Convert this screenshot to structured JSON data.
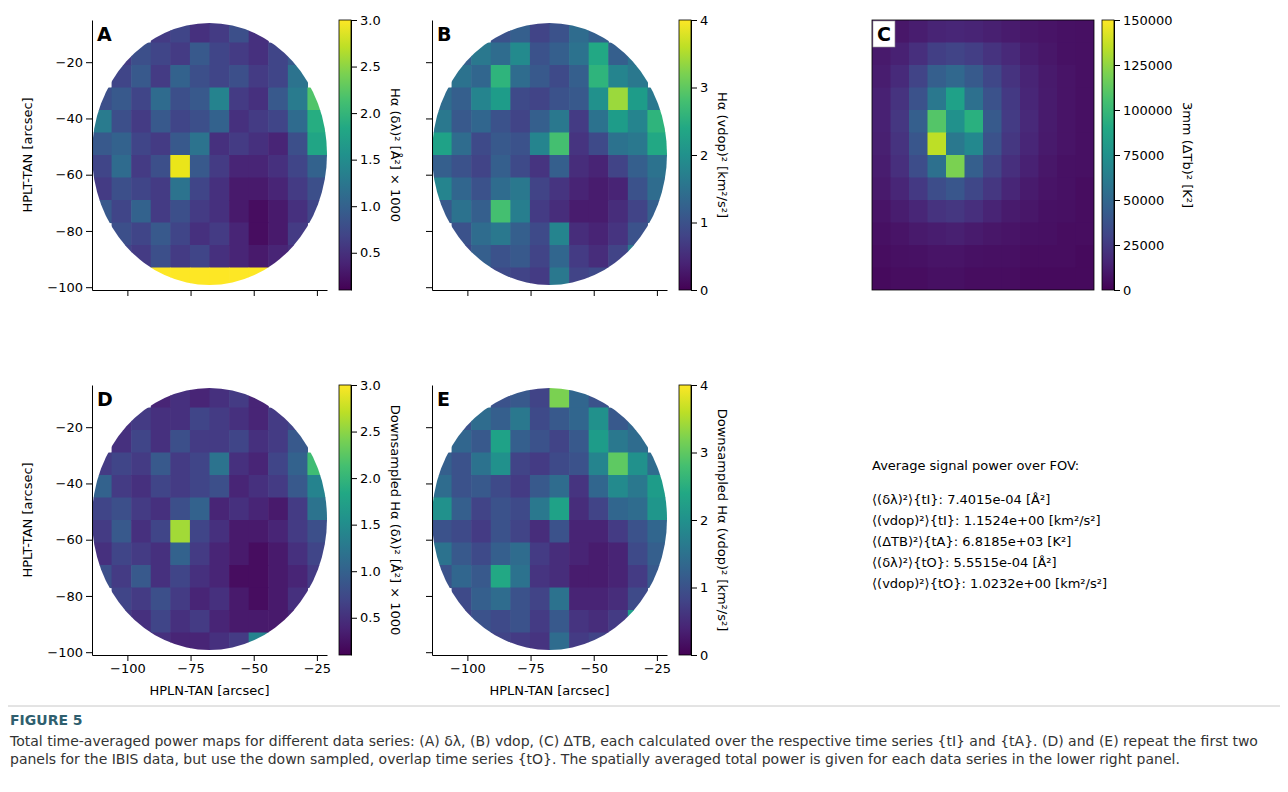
{
  "chart_data": [
    {
      "type": "heatmap",
      "panel": "A",
      "ylabel": "HPLT-TAN [arcsec]",
      "xlim": [
        -114,
        -21
      ],
      "ylim": [
        -101,
        -5
      ],
      "xticks": [
        {
          "value": -100,
          "label": "−100"
        },
        {
          "value": -75,
          "label": "−75"
        },
        {
          "value": -50,
          "label": "−50"
        },
        {
          "value": -25,
          "label": "−25"
        }
      ],
      "yticks": [
        {
          "value": -20,
          "label": "−20"
        },
        {
          "value": -40,
          "label": "−40"
        },
        {
          "value": -60,
          "label": "−60"
        },
        {
          "value": -80,
          "label": "−80"
        },
        {
          "value": -100,
          "label": "−100"
        }
      ],
      "tick_labels": "y",
      "cells": [
        [
          null,
          null,
          null,
          0.6,
          0.7,
          0.5,
          0.6,
          0.8,
          0.5,
          null,
          null,
          null
        ],
        [
          null,
          0.6,
          0.8,
          0.7,
          0.6,
          0.9,
          0.7,
          0.6,
          0.5,
          0.7,
          0.9,
          null
        ],
        [
          null,
          0.7,
          0.9,
          0.6,
          1.0,
          0.8,
          0.7,
          0.8,
          0.6,
          0.7,
          1.2,
          null
        ],
        [
          0.8,
          0.9,
          0.7,
          1.1,
          0.8,
          0.9,
          1.4,
          0.6,
          0.5,
          0.9,
          1.3,
          2.2
        ],
        [
          1.3,
          0.8,
          0.6,
          0.9,
          0.7,
          0.8,
          1.0,
          0.5,
          0.6,
          0.7,
          1.1,
          1.9
        ],
        [
          0.9,
          1.0,
          0.7,
          0.6,
          0.9,
          1.2,
          0.5,
          0.6,
          0.5,
          0.4,
          0.8,
          1.8
        ],
        [
          0.7,
          1.1,
          0.6,
          0.8,
          2.9,
          0.9,
          0.6,
          0.4,
          0.4,
          0.5,
          0.7,
          1.0
        ],
        [
          0.6,
          0.8,
          0.7,
          0.6,
          1.2,
          0.7,
          0.5,
          0.3,
          0.3,
          0.4,
          0.6,
          0.8
        ],
        [
          0.9,
          0.7,
          1.0,
          0.6,
          0.8,
          0.6,
          0.5,
          0.3,
          0.2,
          0.3,
          0.5,
          0.7
        ],
        [
          null,
          0.8,
          0.7,
          0.9,
          0.7,
          0.5,
          0.6,
          0.4,
          0.2,
          0.3,
          0.6,
          null
        ],
        [
          null,
          0.7,
          0.6,
          0.8,
          0.6,
          0.7,
          0.5,
          0.4,
          0.3,
          0.4,
          0.5,
          null
        ],
        [
          null,
          null,
          null,
          3.0,
          3.0,
          3.0,
          3.0,
          3.0,
          3.0,
          null,
          null,
          null
        ]
      ],
      "colorbar": {
        "label": "Hα (δλ)² [Å²] × 1000",
        "lim": [
          0.1,
          3.0
        ],
        "ticks": [
          0.5,
          {
            "value": 1,
            "label": "1.0"
          },
          1.5,
          {
            "value": 2,
            "label": "2.0"
          },
          2.5,
          {
            "value": 3,
            "label": "3.0"
          }
        ]
      }
    },
    {
      "type": "heatmap",
      "panel": "B",
      "xlim": [
        -114,
        -21
      ],
      "ylim": [
        -101,
        -5
      ],
      "xticks": [
        -100,
        -75,
        -50,
        -25
      ],
      "yticks": [
        -20,
        -40,
        -60,
        -80,
        -100
      ],
      "tick_labels": false,
      "cells": [
        [
          null,
          null,
          null,
          1.0,
          1.2,
          0.8,
          1.0,
          1.4,
          1.2,
          null,
          null,
          null
        ],
        [
          null,
          1.2,
          1.6,
          1.4,
          1.9,
          1.0,
          1.2,
          1.5,
          2.4,
          1.2,
          1.5,
          null
        ],
        [
          null,
          1.5,
          1.3,
          2.6,
          1.4,
          1.1,
          0.9,
          1.2,
          2.6,
          1.8,
          1.6,
          null
        ],
        [
          1.4,
          1.2,
          1.8,
          2.2,
          0.9,
          0.8,
          1.0,
          1.1,
          2.0,
          3.4,
          2.2,
          1.6
        ],
        [
          1.6,
          1.1,
          1.3,
          1.0,
          0.8,
          1.2,
          1.6,
          0.7,
          1.5,
          2.2,
          1.8,
          2.6
        ],
        [
          2.3,
          1.4,
          0.9,
          1.1,
          1.0,
          1.8,
          2.8,
          0.6,
          0.9,
          1.5,
          1.6,
          2.4
        ],
        [
          1.2,
          1.0,
          0.8,
          1.2,
          0.9,
          0.6,
          1.2,
          0.5,
          0.4,
          0.8,
          1.2,
          1.5
        ],
        [
          1.8,
          1.3,
          1.0,
          1.4,
          1.6,
          0.8,
          0.6,
          0.4,
          0.3,
          0.4,
          1.0,
          1.4
        ],
        [
          1.1,
          1.5,
          1.2,
          2.8,
          1.7,
          0.7,
          0.5,
          0.3,
          0.3,
          0.5,
          0.8,
          1.2
        ],
        [
          null,
          1.0,
          1.4,
          1.6,
          1.2,
          0.9,
          1.8,
          0.5,
          0.4,
          0.6,
          1.0,
          null
        ],
        [
          null,
          0.9,
          1.2,
          1.0,
          1.1,
          0.8,
          1.3,
          0.7,
          0.5,
          0.8,
          1.6,
          null
        ],
        [
          null,
          null,
          null,
          0.9,
          0.8,
          0.7,
          1.6,
          0.8,
          0.9,
          null,
          null,
          null
        ]
      ],
      "colorbar": {
        "label": "Hα (vdop)² [km²/s²]",
        "lim": [
          0,
          4
        ],
        "ticks": [
          0,
          1,
          2,
          3,
          4
        ]
      }
    },
    {
      "type": "heatmap",
      "panel": "C",
      "tick_labels": false,
      "cells": [
        [
          8000,
          9000,
          12000,
          15000,
          16000,
          15000,
          13000,
          11000,
          9000,
          8000,
          7000,
          6000
        ],
        [
          10000,
          14000,
          20000,
          28000,
          30000,
          27000,
          22000,
          17000,
          12000,
          9000,
          7000,
          6000
        ],
        [
          12000,
          18000,
          30000,
          45000,
          50000,
          42000,
          32000,
          22000,
          15000,
          10000,
          8000,
          6000
        ],
        [
          14000,
          22000,
          38000,
          60000,
          85000,
          55000,
          38000,
          25000,
          16000,
          11000,
          8000,
          6000
        ],
        [
          14000,
          24000,
          45000,
          110000,
          75000,
          95000,
          42000,
          26000,
          17000,
          11000,
          8000,
          6000
        ],
        [
          13000,
          22000,
          40000,
          135000,
          60000,
          70000,
          38000,
          24000,
          16000,
          10000,
          8000,
          6000
        ],
        [
          12000,
          20000,
          35000,
          55000,
          120000,
          45000,
          30000,
          20000,
          14000,
          9000,
          7000,
          6000
        ],
        [
          10000,
          16000,
          25000,
          35000,
          40000,
          32000,
          24000,
          16000,
          11000,
          8000,
          7000,
          5000
        ],
        [
          8000,
          12000,
          16000,
          22000,
          24000,
          20000,
          15000,
          11000,
          9000,
          7000,
          6000,
          5000
        ],
        [
          6000,
          8000,
          10000,
          12000,
          13000,
          11000,
          9000,
          8000,
          7000,
          6000,
          5000,
          5000
        ],
        [
          5000,
          6000,
          7000,
          8000,
          8000,
          7000,
          6000,
          6000,
          5000,
          5000,
          5000,
          4000
        ],
        [
          4000,
          5000,
          5000,
          6000,
          6000,
          5000,
          5000,
          5000,
          4000,
          4000,
          4000,
          4000
        ]
      ],
      "colorbar": {
        "label": "3mm (ΔTb)² [K²]",
        "lim": [
          0,
          150000
        ],
        "ticks": [
          0,
          25000,
          50000,
          75000,
          100000,
          125000,
          150000
        ]
      }
    },
    {
      "type": "heatmap",
      "panel": "D",
      "xlabel": "HPLN-TAN [arcsec]",
      "ylabel": "HPLT-TAN [arcsec]",
      "xlim": [
        -114,
        -21
      ],
      "ylim": [
        -101,
        -5
      ],
      "xticks": [
        {
          "value": -100,
          "label": "−100"
        },
        {
          "value": -75,
          "label": "−75"
        },
        {
          "value": -50,
          "label": "−50"
        },
        {
          "value": -25,
          "label": "−25"
        }
      ],
      "yticks": [
        {
          "value": -20,
          "label": "−20"
        },
        {
          "value": -40,
          "label": "−40"
        },
        {
          "value": -60,
          "label": "−60"
        },
        {
          "value": -80,
          "label": "−80"
        },
        {
          "value": -100,
          "label": "−100"
        }
      ],
      "tick_labels": true,
      "cells": [
        [
          null,
          null,
          null,
          0.4,
          0.5,
          0.4,
          0.5,
          0.6,
          0.4,
          null,
          null,
          null
        ],
        [
          null,
          0.5,
          0.6,
          0.5,
          0.5,
          0.7,
          0.6,
          0.5,
          0.4,
          0.6,
          0.7,
          null
        ],
        [
          null,
          0.5,
          0.7,
          0.5,
          0.8,
          0.6,
          0.6,
          0.7,
          0.5,
          0.6,
          0.9,
          null
        ],
        [
          0.6,
          0.7,
          0.6,
          0.9,
          0.6,
          0.7,
          1.2,
          0.5,
          0.4,
          0.7,
          1.0,
          2.1
        ],
        [
          1.0,
          0.6,
          0.5,
          0.7,
          0.6,
          0.7,
          0.8,
          0.4,
          0.5,
          0.6,
          0.9,
          1.4
        ],
        [
          0.7,
          0.8,
          0.6,
          0.5,
          0.8,
          1.0,
          0.4,
          0.5,
          0.4,
          0.3,
          0.6,
          1.2
        ],
        [
          0.6,
          0.9,
          0.5,
          0.7,
          2.6,
          0.7,
          0.5,
          0.3,
          0.3,
          0.4,
          0.6,
          0.8
        ],
        [
          0.5,
          0.7,
          0.6,
          0.5,
          1.0,
          0.6,
          0.4,
          0.3,
          0.2,
          0.3,
          0.5,
          0.7
        ],
        [
          0.8,
          0.6,
          0.9,
          0.5,
          0.7,
          0.5,
          0.4,
          0.2,
          0.2,
          0.3,
          0.4,
          0.6
        ],
        [
          null,
          0.7,
          0.6,
          0.8,
          0.6,
          0.4,
          0.5,
          0.3,
          0.2,
          0.3,
          0.5,
          null
        ],
        [
          null,
          0.6,
          0.5,
          0.7,
          0.5,
          0.6,
          0.4,
          0.3,
          0.3,
          0.3,
          0.4,
          null
        ],
        [
          null,
          null,
          null,
          0.5,
          0.4,
          0.4,
          0.5,
          0.6,
          1.4,
          null,
          null,
          null
        ]
      ],
      "colorbar": {
        "label": "Downsampled Hα (δλ)² [Å²] × 1000",
        "lim": [
          0.1,
          3.0
        ],
        "ticks": [
          0.5,
          {
            "value": 1,
            "label": "1.0"
          },
          1.5,
          {
            "value": 2,
            "label": "2.0"
          },
          2.5,
          {
            "value": 3,
            "label": "3.0"
          }
        ]
      }
    },
    {
      "type": "heatmap",
      "panel": "E",
      "xlabel": "HPLN-TAN [arcsec]",
      "xlim": [
        -114,
        -21
      ],
      "ylim": [
        -101,
        -5
      ],
      "xticks": [
        {
          "value": -100,
          "label": "−100"
        },
        {
          "value": -75,
          "label": "−75"
        },
        {
          "value": -50,
          "label": "−50"
        },
        {
          "value": -25,
          "label": "−25"
        }
      ],
      "yticks": [
        -20,
        -40,
        -60,
        -80,
        -100
      ],
      "tick_labels": "x",
      "cells": [
        [
          null,
          null,
          null,
          1.0,
          1.1,
          0.8,
          3.2,
          1.3,
          1.0,
          null,
          null,
          null
        ],
        [
          null,
          1.0,
          1.4,
          1.2,
          1.6,
          0.9,
          1.1,
          1.3,
          2.0,
          1.1,
          1.3,
          null
        ],
        [
          null,
          1.3,
          1.1,
          2.3,
          1.2,
          1.0,
          0.8,
          1.1,
          2.2,
          1.6,
          1.4,
          null
        ],
        [
          1.2,
          1.0,
          1.5,
          2.0,
          0.8,
          0.7,
          0.9,
          1.0,
          1.8,
          3.0,
          2.0,
          1.4
        ],
        [
          1.4,
          1.0,
          1.1,
          0.9,
          0.7,
          1.1,
          1.4,
          0.6,
          1.3,
          1.9,
          1.6,
          2.2
        ],
        [
          2.0,
          1.2,
          0.8,
          1.0,
          0.9,
          1.6,
          2.3,
          0.5,
          0.8,
          1.3,
          1.4,
          2.1
        ],
        [
          1.0,
          0.9,
          0.7,
          1.0,
          0.8,
          0.5,
          1.0,
          0.4,
          0.4,
          0.7,
          1.0,
          1.3
        ],
        [
          1.5,
          1.1,
          0.9,
          1.2,
          1.4,
          0.7,
          0.5,
          0.4,
          0.3,
          0.4,
          0.9,
          1.2
        ],
        [
          1.0,
          1.3,
          1.1,
          2.4,
          1.5,
          0.6,
          0.5,
          0.3,
          0.3,
          0.4,
          0.7,
          1.1
        ],
        [
          null,
          0.9,
          1.2,
          1.4,
          1.0,
          0.8,
          1.5,
          0.4,
          0.4,
          0.5,
          0.9,
          null
        ],
        [
          null,
          0.8,
          1.0,
          0.9,
          1.0,
          0.7,
          1.1,
          0.6,
          0.5,
          0.7,
          2.2,
          null
        ],
        [
          null,
          null,
          null,
          0.8,
          0.7,
          0.6,
          1.4,
          0.7,
          0.8,
          null,
          null,
          null
        ]
      ],
      "colorbar": {
        "label": "Downsampled Hα (vdop)² [km²/s²]",
        "lim": [
          0,
          4
        ],
        "ticks": [
          0,
          1,
          2,
          3,
          4
        ]
      }
    }
  ],
  "summary": {
    "title": "Average signal power over FOV:",
    "lines": [
      "⟨(δλ)²⟩{tI}: 7.4015e-04 [Å²]",
      "⟨(vdop)²⟩{tI}: 1.1524e+00 [km²/s²]",
      "⟨(ΔTB)²⟩{tA}: 6.8185e+03 [K²]",
      "⟨(δλ)²⟩{tO}: 5.5515e-04 [Å²]",
      "⟨(vdop)²⟩{tO}: 1.0232e+00 [km²/s²]"
    ]
  },
  "caption": {
    "label": "FIGURE 5",
    "text": "Total time-averaged power maps for different data series: (A) δλ, (B) vdop, (C) ΔTB, each calculated over the respective time series {tI} and {tA}. (D) and (E) repeat the first two panels for the IBIS data, but use the down sampled, overlap time series {tO}. The spatially averaged total power is given for each data series in the lower right panel."
  }
}
